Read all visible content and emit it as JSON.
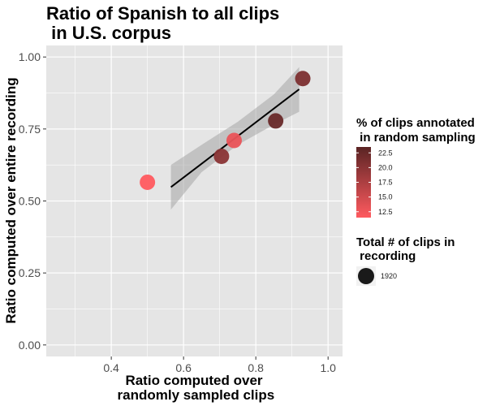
{
  "chart_data": {
    "type": "scatter",
    "title_lines": [
      "Ratio of Spanish to all clips",
      " in U.S. corpus"
    ],
    "xlabel_lines": [
      "Ratio computed over",
      " randomly sampled clips"
    ],
    "ylabel": "Ratio computed over entire recording",
    "xlim": [
      0.22,
      1.04
    ],
    "ylim": [
      -0.04,
      1.04
    ],
    "x_ticks": [
      0.4,
      0.6,
      0.8,
      1.0
    ],
    "x_tick_labels": [
      "0.4",
      "0.6",
      "0.8",
      "1.0"
    ],
    "y_ticks": [
      0.0,
      0.25,
      0.5,
      0.75,
      1.0
    ],
    "y_tick_labels": [
      "0.00",
      "0.25",
      "0.50",
      "0.75",
      "1.00"
    ],
    "grid": true,
    "points": [
      {
        "x": 0.5,
        "y": 0.565,
        "pct_annotated": 11.5
      },
      {
        "x": 0.705,
        "y": 0.655,
        "pct_annotated": 20.0
      },
      {
        "x": 0.74,
        "y": 0.71,
        "pct_annotated": 13.0
      },
      {
        "x": 0.855,
        "y": 0.778,
        "pct_annotated": 22.5
      },
      {
        "x": 0.93,
        "y": 0.925,
        "pct_annotated": 21.0
      }
    ],
    "fit_line": {
      "x": [
        0.565,
        0.92
      ],
      "y": [
        0.548,
        0.888
      ]
    },
    "confidence_band": {
      "x": [
        0.565,
        0.65,
        0.75,
        0.85,
        0.92
      ],
      "upper": [
        0.625,
        0.695,
        0.775,
        0.87,
        0.965
      ],
      "lower": [
        0.47,
        0.6,
        0.695,
        0.765,
        0.81
      ]
    },
    "color_legend": {
      "title_lines": [
        "% of clips annotated",
        " in random sampling"
      ],
      "ticks": [
        12.5,
        15.0,
        17.5,
        20.0,
        22.5
      ],
      "tick_labels": [
        "12.5",
        "15.0",
        "17.5",
        "20.0",
        "22.5"
      ],
      "range": [
        11.5,
        23.5
      ],
      "color_low": "#ff5a5f",
      "color_high": "#5a2424",
      "placement": "right"
    },
    "size_legend": {
      "title_lines": [
        "Total # of clips in",
        " recording"
      ],
      "entries": [
        "1920"
      ],
      "placement": "right"
    },
    "colors": {
      "panel_bg": "#e5e5e5",
      "grid": "#ffffff",
      "fit_line": "#000000",
      "band": "#a6a6a6"
    }
  }
}
